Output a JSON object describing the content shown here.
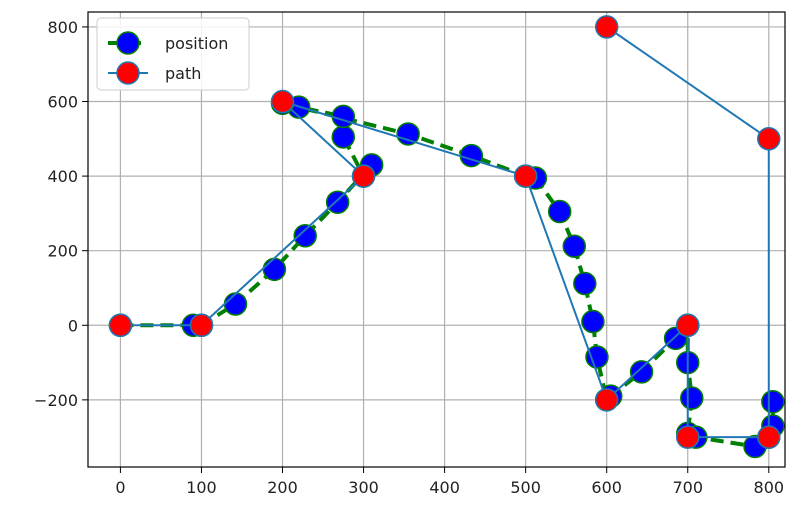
{
  "chart_data": {
    "type": "line",
    "xlim": [
      -40,
      820
    ],
    "ylim": [
      -380,
      840
    ],
    "xticks": [
      0,
      100,
      200,
      300,
      400,
      500,
      600,
      700,
      800
    ],
    "yticks": [
      -200,
      0,
      200,
      400,
      600,
      800
    ],
    "grid": true,
    "legend_position": "top-left",
    "series": [
      {
        "name": "position",
        "line_color": "#008000",
        "line_style": "dashed",
        "marker_fill": "#0000ff",
        "marker_edge": "#008000",
        "points": [
          [
            0,
            0
          ],
          [
            90,
            0
          ],
          [
            100,
            0
          ],
          [
            142,
            57
          ],
          [
            190,
            150
          ],
          [
            228,
            240
          ],
          [
            268,
            330
          ],
          [
            310,
            430
          ],
          [
            300,
            400
          ],
          [
            275,
            505
          ],
          [
            275,
            560
          ],
          [
            220,
            585
          ],
          [
            200,
            595
          ],
          [
            355,
            513
          ],
          [
            433,
            455
          ],
          [
            500,
            400
          ],
          [
            512,
            395
          ],
          [
            542,
            305
          ],
          [
            560,
            212
          ],
          [
            573,
            112
          ],
          [
            583,
            10
          ],
          [
            588,
            -85
          ],
          [
            600,
            -200
          ],
          [
            605,
            -190
          ],
          [
            643,
            -125
          ],
          [
            685,
            -35
          ],
          [
            700,
            0
          ],
          [
            700,
            -100
          ],
          [
            705,
            -195
          ],
          [
            700,
            -290
          ],
          [
            710,
            -300
          ],
          [
            783,
            -325
          ],
          [
            800,
            -300
          ],
          [
            805,
            -270
          ],
          [
            805,
            -205
          ]
        ]
      },
      {
        "name": "path",
        "line_color": "#1f77b4",
        "line_style": "solid",
        "marker_fill": "#ff0000",
        "marker_edge": "#1f77b4",
        "points": [
          [
            0,
            0
          ],
          [
            100,
            0
          ],
          [
            300,
            400
          ],
          [
            200,
            600
          ],
          [
            500,
            400
          ],
          [
            600,
            -200
          ],
          [
            700,
            0
          ],
          [
            700,
            -300
          ],
          [
            800,
            -300
          ],
          [
            800,
            500
          ],
          [
            600,
            800
          ]
        ]
      }
    ]
  }
}
